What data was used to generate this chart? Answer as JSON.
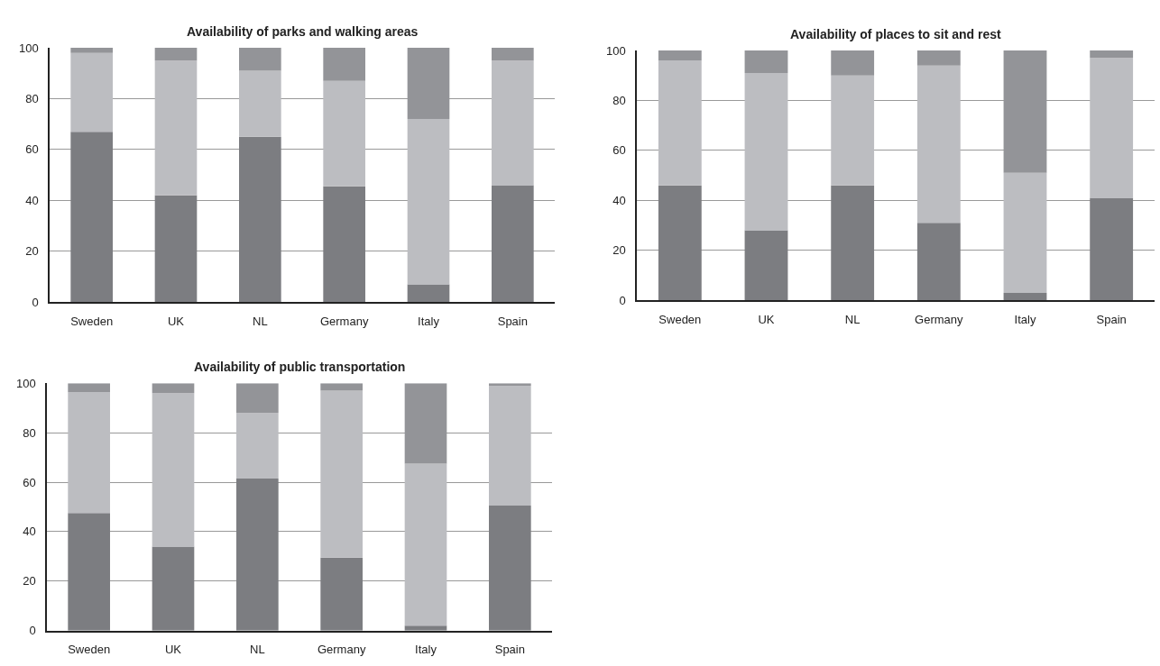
{
  "chart_data": [
    {
      "type": "bar",
      "title": "Availability of parks and walking areas",
      "stacked": true,
      "categories": [
        "Sweden",
        "UK",
        "NL",
        "Germany",
        "Italy",
        "Spain"
      ],
      "ylim": [
        0,
        100
      ],
      "yticks": [
        0,
        20,
        40,
        60,
        80,
        100
      ],
      "grid": "y",
      "legend": false,
      "series": [
        {
          "color": "#7c7d81",
          "values": [
            67,
            42,
            65,
            45.5,
            7,
            46
          ]
        },
        {
          "color": "#bcbdc1",
          "values": [
            31,
            53,
            26,
            41.5,
            65,
            49
          ]
        },
        {
          "color": "#939498",
          "values": [
            2,
            5,
            9,
            13,
            28,
            5
          ]
        }
      ]
    },
    {
      "type": "bar",
      "title": "Availability of places to sit and rest",
      "stacked": true,
      "categories": [
        "Sweden",
        "UK",
        "NL",
        "Germany",
        "Italy",
        "Spain"
      ],
      "ylim": [
        0,
        100
      ],
      "yticks": [
        0,
        20,
        40,
        60,
        80,
        100
      ],
      "grid": "y",
      "legend": false,
      "series": [
        {
          "color": "#7c7d81",
          "values": [
            46,
            28,
            46,
            31,
            3,
            41
          ]
        },
        {
          "color": "#bcbdc1",
          "values": [
            50,
            63,
            44,
            63,
            48,
            56
          ]
        },
        {
          "color": "#939498",
          "values": [
            4,
            9,
            10,
            6,
            49,
            3
          ]
        }
      ]
    },
    {
      "type": "bar",
      "title": "Availability of public transportation",
      "stacked": true,
      "categories": [
        "Sweden",
        "UK",
        "NL",
        "Germany",
        "Italy",
        "Spain"
      ],
      "ylim": [
        0,
        100
      ],
      "yticks": [
        0,
        20,
        40,
        60,
        80,
        100
      ],
      "grid": "y",
      "legend": false,
      "series": [
        {
          "color": "#7c7d81",
          "values": [
            47.5,
            34,
            61.5,
            29.5,
            2,
            50.5
          ]
        },
        {
          "color": "#bcbdc1",
          "values": [
            49,
            62,
            26.5,
            67.5,
            65.5,
            48.5
          ]
        },
        {
          "color": "#939498",
          "values": [
            3.5,
            4,
            12,
            3,
            32.5,
            1
          ]
        }
      ]
    }
  ]
}
